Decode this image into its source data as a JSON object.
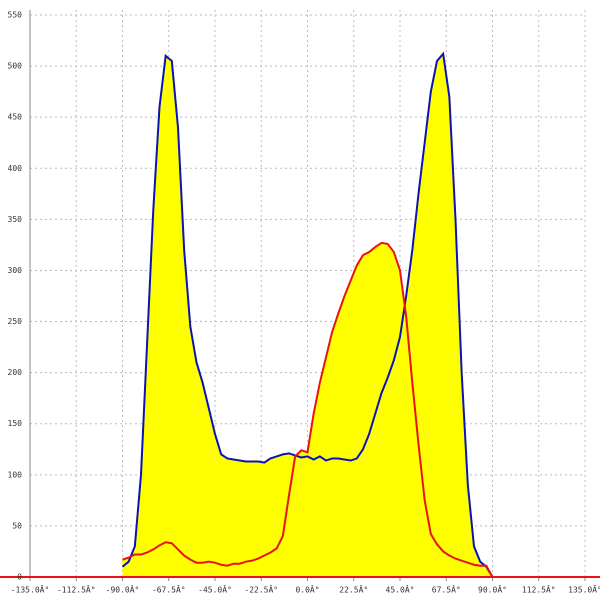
{
  "chart_data": {
    "type": "area",
    "x": [
      -90,
      -87,
      -84,
      -81,
      -78,
      -75,
      -72,
      -69,
      -66,
      -63,
      -60,
      -57,
      -54,
      -51,
      -48,
      -45,
      -42,
      -39,
      -36,
      -33,
      -30,
      -27,
      -24,
      -21,
      -18,
      -15,
      -12,
      -9,
      -6,
      -3,
      0,
      3,
      6,
      9,
      12,
      15,
      18,
      21,
      24,
      27,
      30,
      33,
      36,
      39,
      42,
      45,
      48,
      51,
      54,
      57,
      60,
      63,
      66,
      69,
      72,
      75,
      78,
      81,
      84,
      87,
      90
    ],
    "series": [
      {
        "color": "#0a14b4",
        "values": [
          10,
          15,
          30,
          100,
          230,
          360,
          460,
          510,
          505,
          440,
          320,
          245,
          210,
          190,
          165,
          140,
          120,
          116,
          115,
          114,
          113,
          113,
          113,
          112,
          116,
          118,
          120,
          121,
          119,
          117,
          118,
          115,
          118,
          114,
          116,
          116,
          115,
          114,
          116,
          125,
          140,
          160,
          180,
          195,
          212,
          235,
          275,
          320,
          375,
          425,
          475,
          505,
          512,
          470,
          350,
          200,
          90,
          30,
          15,
          10,
          0
        ]
      },
      {
        "color": "#e81414",
        "values": [
          17,
          19,
          22,
          22,
          24,
          27,
          31,
          34,
          33,
          27,
          21,
          17,
          14,
          14,
          15,
          14,
          12,
          11,
          13,
          13,
          15,
          16,
          18,
          21,
          24,
          28,
          40,
          80,
          118,
          124,
          122,
          160,
          190,
          215,
          240,
          258,
          275,
          290,
          305,
          315,
          318,
          323,
          327,
          326,
          318,
          300,
          255,
          190,
          130,
          75,
          42,
          32,
          25,
          21,
          18,
          16,
          14,
          12,
          11,
          11,
          0
        ]
      }
    ],
    "fill_color": "#ffff00",
    "grid": true,
    "xlim": [
      -135,
      135
    ],
    "xticks": [
      {
        "value": -135,
        "label": "-135.0Â°"
      },
      {
        "value": -112.5,
        "label": "-112.5Â°"
      },
      {
        "value": -90,
        "label": "-90.0Â°"
      },
      {
        "value": -67.5,
        "label": "-67.5Â°"
      },
      {
        "value": -45,
        "label": "-45.0Â°"
      },
      {
        "value": -22.5,
        "label": "-22.5Â°"
      },
      {
        "value": 0,
        "label": "0.0Â°"
      },
      {
        "value": 22.5,
        "label": "22.5Â°"
      },
      {
        "value": 45,
        "label": "45.0Â°"
      },
      {
        "value": 67.5,
        "label": "67.5Â°"
      },
      {
        "value": 90,
        "label": "90.0Â°"
      },
      {
        "value": 112.5,
        "label": "112.5Â°"
      },
      {
        "value": 135,
        "label": "135.0Â°"
      }
    ],
    "ylim": [
      0,
      550
    ],
    "yticks": [
      0,
      50,
      100,
      150,
      200,
      250,
      300,
      350,
      400,
      450,
      500,
      550
    ]
  }
}
